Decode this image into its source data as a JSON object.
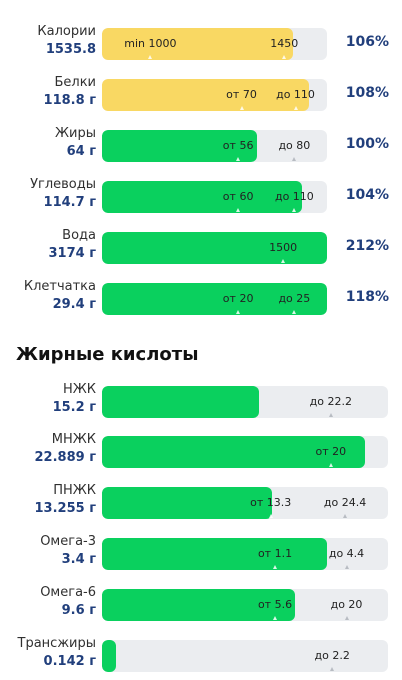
{
  "nutrients": [
    {
      "name": "Калории",
      "amount": "1535.8",
      "percent": "106%",
      "color": "#f9d863",
      "fill": 0.85,
      "min_label": "min 1000",
      "max_label": "1450",
      "min_pos": 0.215,
      "max_pos": 0.81
    },
    {
      "name": "Белки",
      "amount": "118.8 г",
      "percent": "108%",
      "color": "#f9d863",
      "fill": 0.92,
      "min_label": "от 70",
      "max_label": "до 110",
      "min_pos": 0.62,
      "max_pos": 0.86
    },
    {
      "name": "Жиры",
      "amount": "64 г",
      "percent": "100%",
      "color": "#0ad05e",
      "fill": 0.69,
      "min_label": "от 56",
      "max_label": "до 80",
      "min_pos": 0.605,
      "max_pos": 0.855
    },
    {
      "name": "Углеводы",
      "amount": "114.7 г",
      "percent": "104%",
      "color": "#0ad05e",
      "fill": 0.89,
      "min_label": "от 60",
      "max_label": "до 110",
      "min_pos": 0.605,
      "max_pos": 0.855
    },
    {
      "name": "Вода",
      "amount": "3174 г",
      "percent": "212%",
      "color": "#0ad05e",
      "fill": 1.0,
      "min_label": "",
      "max_label": "1500",
      "min_pos": null,
      "max_pos": 0.805
    },
    {
      "name": "Клетчатка",
      "amount": "29.4 г",
      "percent": "118%",
      "color": "#0ad05e",
      "fill": 1.0,
      "min_label": "от 20",
      "max_label": "до 25",
      "min_pos": 0.605,
      "max_pos": 0.855
    }
  ],
  "fatty_acids": {
    "title": "Жирные кислоты",
    "items": [
      {
        "name": "НЖК",
        "amount": "15.2 г",
        "fill": 0.55,
        "min_label": "",
        "max_label": "до 22.2",
        "min_pos": null,
        "max_pos": 0.8
      },
      {
        "name": "МНЖК",
        "amount": "22.889 г",
        "fill": 0.92,
        "min_label": "",
        "max_label": "от 20",
        "min_pos": null,
        "max_pos": 0.8
      },
      {
        "name": "ПНЖК",
        "amount": "13.255 г",
        "fill": 0.595,
        "min_label": "от 13.3",
        "max_label": "до 24.4",
        "min_pos": 0.59,
        "max_pos": 0.85
      },
      {
        "name": "Омега-3",
        "amount": "3.4 г",
        "fill": 0.785,
        "min_label": "от 1.1",
        "max_label": "до 4.4",
        "min_pos": 0.605,
        "max_pos": 0.855
      },
      {
        "name": "Омега-6",
        "amount": "9.6 г",
        "fill": 0.675,
        "min_label": "от 5.6",
        "max_label": "до 20",
        "min_pos": 0.605,
        "max_pos": 0.855
      },
      {
        "name": "Трансжиры",
        "amount": "0.142 г",
        "fill": 0.05,
        "min_label": "",
        "max_label": "до 2.2",
        "min_pos": null,
        "max_pos": 0.805
      }
    ]
  }
}
